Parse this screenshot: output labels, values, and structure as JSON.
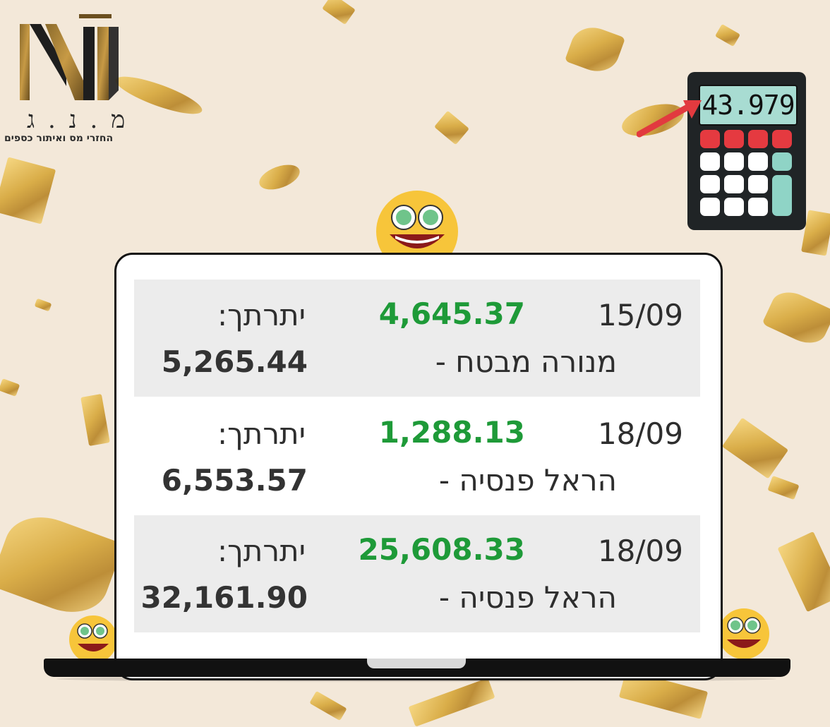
{
  "logo": {
    "letters": "מ . נ . ג",
    "tagline": "החזרי מס ואיתור כספים"
  },
  "calculator": {
    "display": "43.979"
  },
  "transactions": [
    {
      "date": "15/09",
      "amount": "4,645.37",
      "company": "מנורה מבטח -",
      "balance_label": "יתרתך:",
      "balance": "5,265.44"
    },
    {
      "date": "18/09",
      "amount": "1,288.13",
      "company": "הראל פנסיה -",
      "balance_label": "יתרתך:",
      "balance": "6,553.57"
    },
    {
      "date": "18/09",
      "amount": "25,608.33",
      "company": "הראל פנסיה -",
      "balance_label": "יתרתך:",
      "balance": "32,161.90"
    }
  ],
  "colors": {
    "background": "#f3e8d9",
    "amount_green": "#1e9a38",
    "confetti_gold": "#d7a83c",
    "calculator_red": "#e53a40",
    "calculator_teal": "#8fd4c6"
  },
  "icons": [
    "money-eyes-emoji-icon",
    "calculator-icon",
    "red-arrow-icon",
    "logo-mark-icon"
  ]
}
